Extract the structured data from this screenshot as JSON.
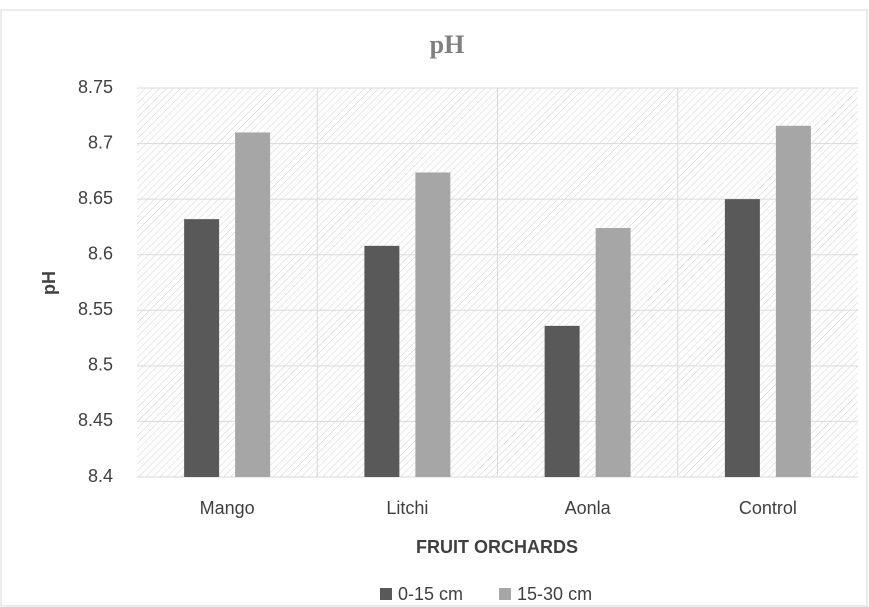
{
  "chart_data": {
    "type": "bar",
    "title": "pH",
    "x_label": "FRUIT ORCHARDS",
    "y_label": "pH",
    "categories": [
      "Mango",
      "Litchi",
      "Aonla",
      "Control"
    ],
    "series": [
      {
        "name": "0-15 cm",
        "color": "#595959",
        "values": [
          8.632,
          8.608,
          8.536,
          8.65
        ]
      },
      {
        "name": "15-30 cm",
        "color": "#a6a6a6",
        "values": [
          8.71,
          8.674,
          8.624,
          8.716
        ]
      }
    ],
    "ylim": [
      8.4,
      8.75
    ],
    "yticks": [
      8.4,
      8.45,
      8.5,
      8.55,
      8.6,
      8.65,
      8.7,
      8.75
    ],
    "grid": true,
    "legend": "bottom"
  }
}
